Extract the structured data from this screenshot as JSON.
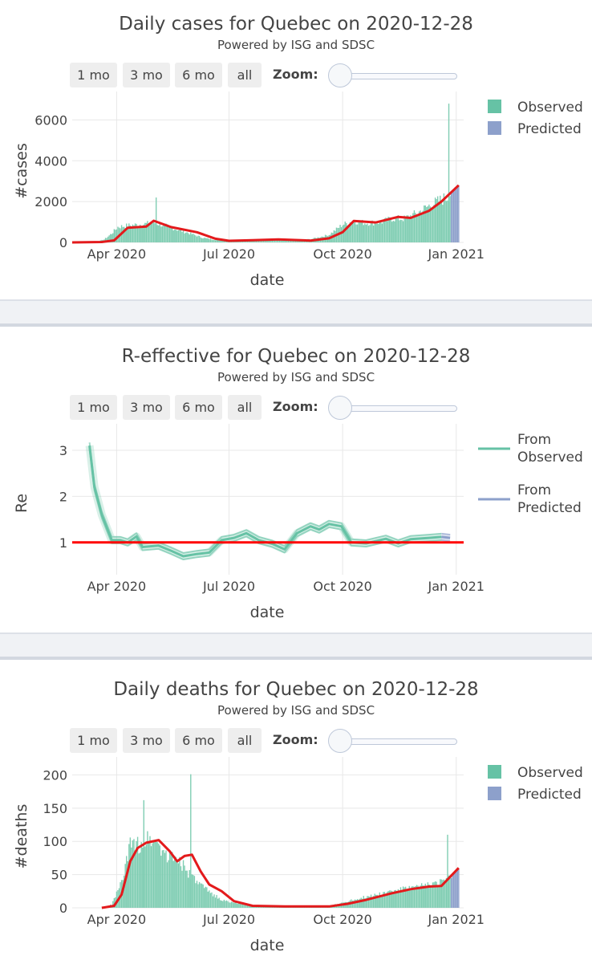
{
  "colors": {
    "observed": "#66c2a5",
    "observed_bar": "#7fcdb2",
    "predicted": "#8da0cb",
    "fit_line": "#e31a1c",
    "reference_line": "#ff0000",
    "grid": "#e8e8e8",
    "divider": "#f0f2f5"
  },
  "controls": {
    "buttons": [
      "1 mo",
      "3 mo",
      "6 mo",
      "all"
    ],
    "zoom_label": "Zoom:"
  },
  "panels": [
    {
      "id": "cases",
      "title": "Daily cases for Quebec on 2020-12-28",
      "subtitle": "Powered by ISG and SDSC"
    },
    {
      "id": "re",
      "title": "R-effective for Quebec on 2020-12-28",
      "subtitle": "Powered by ISG and SDSC"
    },
    {
      "id": "deaths",
      "title": "Daily deaths for Quebec on 2020-12-28",
      "subtitle": "Powered by ISG and SDSC"
    }
  ],
  "chart_data": [
    {
      "type": "bar",
      "title": "Daily cases for Quebec on 2020-12-28",
      "xlabel": "date",
      "ylabel": "#cases",
      "x_range": [
        "2020-02-25",
        "2021-01-07"
      ],
      "ylim": [
        0,
        7000
      ],
      "y_ticks": [
        0,
        2000,
        4000,
        6000
      ],
      "x_ticks": [
        {
          "date": "2020-04-01",
          "label": "Apr 2020"
        },
        {
          "date": "2020-07-01",
          "label": "Jul 2020"
        },
        {
          "date": "2020-10-01",
          "label": "Oct 2020"
        },
        {
          "date": "2021-01-01",
          "label": "Jan 2021"
        }
      ],
      "legend": [
        "Observed",
        "Predicted"
      ],
      "legend_position": "top-right",
      "grid": true,
      "observed_points": [
        [
          "2020-02-25",
          0
        ],
        [
          "2020-03-15",
          10
        ],
        [
          "2020-03-22",
          150
        ],
        [
          "2020-03-28",
          450
        ],
        [
          "2020-04-02",
          780
        ],
        [
          "2020-04-10",
          850
        ],
        [
          "2020-04-18",
          900
        ],
        [
          "2020-04-25",
          940
        ],
        [
          "2020-05-01",
          1000
        ],
        [
          "2020-05-10",
          850
        ],
        [
          "2020-05-20",
          650
        ],
        [
          "2020-06-01",
          420
        ],
        [
          "2020-06-10",
          230
        ],
        [
          "2020-06-20",
          130
        ],
        [
          "2020-07-01",
          80
        ],
        [
          "2020-07-15",
          110
        ],
        [
          "2020-08-01",
          130
        ],
        [
          "2020-08-20",
          110
        ],
        [
          "2020-09-05",
          160
        ],
        [
          "2020-09-20",
          380
        ],
        [
          "2020-10-01",
          900
        ],
        [
          "2020-10-10",
          1080
        ],
        [
          "2020-10-20",
          980
        ],
        [
          "2020-11-01",
          1020
        ],
        [
          "2020-11-10",
          1200
        ],
        [
          "2020-11-20",
          1200
        ],
        [
          "2020-12-01",
          1500
        ],
        [
          "2020-12-10",
          1850
        ],
        [
          "2020-12-20",
          2150
        ],
        [
          "2020-12-25",
          2300
        ],
        [
          "2020-12-27",
          2450
        ]
      ],
      "spikes": [
        {
          "date": "2020-05-03",
          "value": 2200
        },
        {
          "date": "2020-12-26",
          "value": 6800
        }
      ],
      "predicted_points": [
        [
          "2020-12-28",
          2500
        ],
        [
          "2020-12-31",
          2700
        ],
        [
          "2021-01-03",
          2800
        ]
      ],
      "fit_line": [
        [
          "2020-02-25",
          0
        ],
        [
          "2020-03-20",
          20
        ],
        [
          "2020-03-30",
          100
        ],
        [
          "2020-04-10",
          720
        ],
        [
          "2020-04-25",
          780
        ],
        [
          "2020-05-01",
          1060
        ],
        [
          "2020-05-15",
          750
        ],
        [
          "2020-06-05",
          500
        ],
        [
          "2020-06-20",
          180
        ],
        [
          "2020-07-01",
          80
        ],
        [
          "2020-07-20",
          110
        ],
        [
          "2020-08-10",
          150
        ],
        [
          "2020-09-05",
          90
        ],
        [
          "2020-09-20",
          200
        ],
        [
          "2020-10-01",
          500
        ],
        [
          "2020-10-10",
          1050
        ],
        [
          "2020-10-28",
          980
        ],
        [
          "2020-11-15",
          1250
        ],
        [
          "2020-11-25",
          1200
        ],
        [
          "2020-12-10",
          1550
        ],
        [
          "2020-12-20",
          2000
        ],
        [
          "2021-01-03",
          2800
        ]
      ]
    },
    {
      "type": "line",
      "title": "R-effective for Quebec on 2020-12-28",
      "xlabel": "date",
      "ylabel": "Re",
      "x_range": [
        "2020-02-25",
        "2021-01-07"
      ],
      "ylim": [
        0.3,
        3.4
      ],
      "y_ticks": [
        1,
        2,
        3
      ],
      "x_ticks": [
        {
          "date": "2020-04-01",
          "label": "Apr 2020"
        },
        {
          "date": "2020-07-01",
          "label": "Jul 2020"
        },
        {
          "date": "2020-10-01",
          "label": "Oct 2020"
        },
        {
          "date": "2021-01-01",
          "label": "Jan 2021"
        }
      ],
      "legend": [
        "From Observed",
        "From Predicted"
      ],
      "legend_position": "top-right",
      "grid": true,
      "reference_line": 1,
      "series": [
        {
          "name": "From Observed",
          "points": [
            [
              "2020-03-10",
              3.1
            ],
            [
              "2020-03-14",
              2.2
            ],
            [
              "2020-03-20",
              1.6
            ],
            [
              "2020-03-28",
              1.05
            ],
            [
              "2020-04-04",
              1.05
            ],
            [
              "2020-04-10",
              1.0
            ],
            [
              "2020-04-17",
              1.13
            ],
            [
              "2020-04-22",
              0.9
            ],
            [
              "2020-05-05",
              0.93
            ],
            [
              "2020-05-15",
              0.82
            ],
            [
              "2020-05-25",
              0.7
            ],
            [
              "2020-06-05",
              0.75
            ],
            [
              "2020-06-15",
              0.78
            ],
            [
              "2020-06-25",
              1.05
            ],
            [
              "2020-07-05",
              1.1
            ],
            [
              "2020-07-15",
              1.2
            ],
            [
              "2020-07-25",
              1.05
            ],
            [
              "2020-08-05",
              0.97
            ],
            [
              "2020-08-15",
              0.85
            ],
            [
              "2020-08-25",
              1.2
            ],
            [
              "2020-09-05",
              1.35
            ],
            [
              "2020-09-12",
              1.28
            ],
            [
              "2020-09-20",
              1.4
            ],
            [
              "2020-09-30",
              1.35
            ],
            [
              "2020-10-08",
              1.0
            ],
            [
              "2020-10-20",
              0.98
            ],
            [
              "2020-11-05",
              1.08
            ],
            [
              "2020-11-15",
              0.98
            ],
            [
              "2020-11-25",
              1.07
            ],
            [
              "2020-12-10",
              1.1
            ],
            [
              "2020-12-20",
              1.12
            ]
          ]
        },
        {
          "name": "From Predicted",
          "points": [
            [
              "2020-12-20",
              1.12
            ],
            [
              "2020-12-27",
              1.1
            ]
          ]
        }
      ]
    },
    {
      "type": "bar",
      "title": "Daily deaths for Quebec on 2020-12-28",
      "xlabel": "date",
      "ylabel": "#deaths",
      "x_range": [
        "2020-02-25",
        "2021-01-07"
      ],
      "ylim": [
        0,
        215
      ],
      "y_ticks": [
        0,
        50,
        100,
        150,
        200
      ],
      "x_ticks": [
        {
          "date": "2020-04-01",
          "label": "Apr 2020"
        },
        {
          "date": "2020-07-01",
          "label": "Jul 2020"
        },
        {
          "date": "2020-10-01",
          "label": "Oct 2020"
        },
        {
          "date": "2021-01-01",
          "label": "Jan 2021"
        }
      ],
      "legend": [
        "Observed",
        "Predicted"
      ],
      "legend_position": "top-right",
      "grid": true,
      "observed_points": [
        [
          "2020-02-25",
          0
        ],
        [
          "2020-03-20",
          0
        ],
        [
          "2020-03-28",
          5
        ],
        [
          "2020-04-05",
          40
        ],
        [
          "2020-04-12",
          95
        ],
        [
          "2020-04-20",
          100
        ],
        [
          "2020-04-28",
          110
        ],
        [
          "2020-05-05",
          100
        ],
        [
          "2020-05-12",
          80
        ],
        [
          "2020-05-20",
          80
        ],
        [
          "2020-05-28",
          55
        ],
        [
          "2020-06-05",
          40
        ],
        [
          "2020-06-15",
          25
        ],
        [
          "2020-06-25",
          12
        ],
        [
          "2020-07-05",
          8
        ],
        [
          "2020-07-20",
          3
        ],
        [
          "2020-08-10",
          2
        ],
        [
          "2020-09-01",
          1
        ],
        [
          "2020-09-20",
          3
        ],
        [
          "2020-10-01",
          8
        ],
        [
          "2020-10-15",
          15
        ],
        [
          "2020-11-01",
          22
        ],
        [
          "2020-11-15",
          28
        ],
        [
          "2020-12-01",
          32
        ],
        [
          "2020-12-15",
          38
        ],
        [
          "2020-12-27",
          45
        ]
      ],
      "spikes": [
        {
          "date": "2020-04-23",
          "value": 162
        },
        {
          "date": "2020-05-31",
          "value": 201
        },
        {
          "date": "2020-12-25",
          "value": 110
        }
      ],
      "predicted_points": [
        [
          "2020-12-28",
          45
        ],
        [
          "2020-12-31",
          55
        ],
        [
          "2021-01-03",
          58
        ]
      ],
      "fit_line": [
        [
          "2020-03-20",
          0
        ],
        [
          "2020-03-30",
          3
        ],
        [
          "2020-04-05",
          20
        ],
        [
          "2020-04-12",
          70
        ],
        [
          "2020-04-18",
          90
        ],
        [
          "2020-04-25",
          98
        ],
        [
          "2020-05-05",
          102
        ],
        [
          "2020-05-14",
          85
        ],
        [
          "2020-05-20",
          70
        ],
        [
          "2020-05-26",
          78
        ],
        [
          "2020-06-01",
          80
        ],
        [
          "2020-06-08",
          55
        ],
        [
          "2020-06-15",
          35
        ],
        [
          "2020-06-25",
          25
        ],
        [
          "2020-07-05",
          10
        ],
        [
          "2020-07-20",
          3
        ],
        [
          "2020-08-15",
          2
        ],
        [
          "2020-09-20",
          2
        ],
        [
          "2020-10-05",
          6
        ],
        [
          "2020-10-20",
          12
        ],
        [
          "2020-11-10",
          22
        ],
        [
          "2020-11-25",
          28
        ],
        [
          "2020-12-10",
          32
        ],
        [
          "2020-12-20",
          33
        ],
        [
          "2021-01-03",
          60
        ]
      ]
    }
  ]
}
